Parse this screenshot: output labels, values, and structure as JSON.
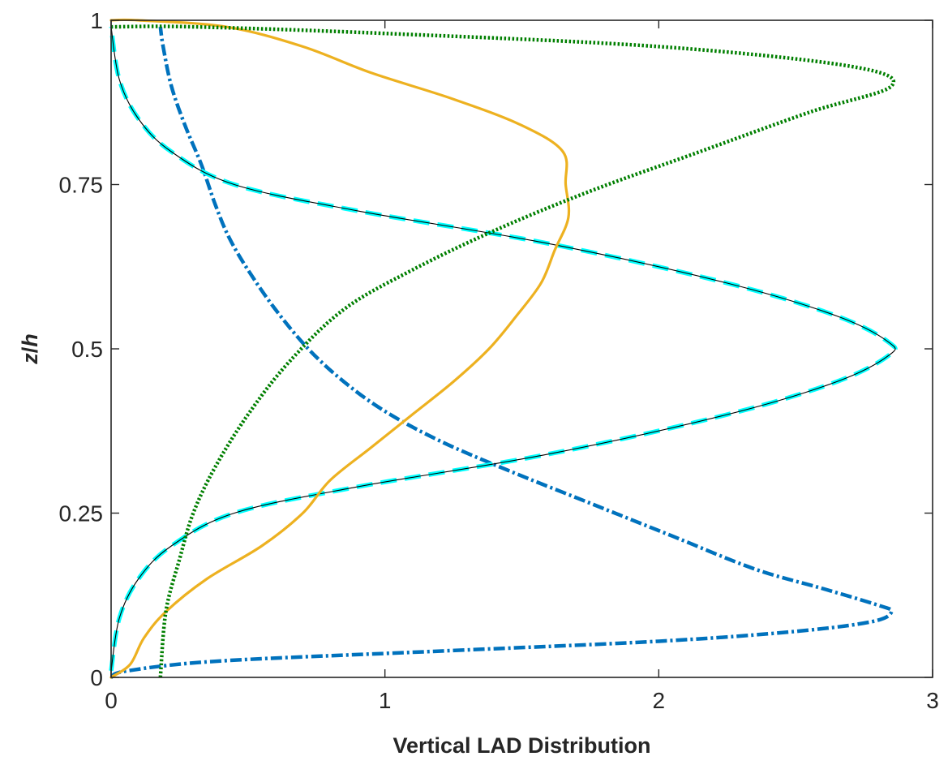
{
  "chart_data": {
    "type": "line",
    "title": "",
    "xlabel": "Vertical LAD Distribution",
    "ylabel": "z/h",
    "xlim": [
      0,
      3
    ],
    "ylim": [
      0,
      1
    ],
    "xticks": [
      "0",
      "1",
      "2",
      "3"
    ],
    "yticks": [
      "0",
      "0.25",
      "0.5",
      "0.75",
      "1"
    ],
    "grid": false,
    "series": [
      {
        "style": "dash-dot",
        "color": "#0072BD",
        "points": [
          [
            0.0,
            0.0
          ],
          [
            0.06,
            0.01
          ],
          [
            0.4,
            0.025
          ],
          [
            1.2,
            0.04
          ],
          [
            2.0,
            0.055
          ],
          [
            2.5,
            0.07
          ],
          [
            2.78,
            0.085
          ],
          [
            2.85,
            0.1
          ],
          [
            2.8,
            0.11
          ],
          [
            2.6,
            0.135
          ],
          [
            2.35,
            0.165
          ],
          [
            2.05,
            0.215
          ],
          [
            1.75,
            0.265
          ],
          [
            1.45,
            0.315
          ],
          [
            1.2,
            0.36
          ],
          [
            1.0,
            0.405
          ],
          [
            0.85,
            0.45
          ],
          [
            0.72,
            0.5
          ],
          [
            0.6,
            0.56
          ],
          [
            0.5,
            0.62
          ],
          [
            0.43,
            0.67
          ],
          [
            0.38,
            0.72
          ],
          [
            0.33,
            0.78
          ],
          [
            0.27,
            0.84
          ],
          [
            0.22,
            0.9
          ],
          [
            0.19,
            0.96
          ],
          [
            0.18,
            0.99
          ]
        ]
      },
      {
        "style": "dashed",
        "color": "#00FFFF",
        "points": [
          [
            0.0,
            0.01
          ],
          [
            0.03,
            0.09
          ],
          [
            0.1,
            0.15
          ],
          [
            0.22,
            0.2
          ],
          [
            0.45,
            0.25
          ],
          [
            0.9,
            0.29
          ],
          [
            1.6,
            0.34
          ],
          [
            2.25,
            0.4
          ],
          [
            2.65,
            0.45
          ],
          [
            2.84,
            0.49
          ],
          [
            2.84,
            0.51
          ],
          [
            2.65,
            0.55
          ],
          [
            2.25,
            0.6
          ],
          [
            1.6,
            0.66
          ],
          [
            0.9,
            0.71
          ],
          [
            0.45,
            0.75
          ],
          [
            0.22,
            0.8
          ],
          [
            0.1,
            0.85
          ],
          [
            0.03,
            0.91
          ],
          [
            0.0,
            0.99
          ]
        ]
      },
      {
        "style": "thin-solid",
        "color": "#000000",
        "points": [
          [
            0.0,
            0.01
          ],
          [
            0.03,
            0.09
          ],
          [
            0.1,
            0.15
          ],
          [
            0.22,
            0.2
          ],
          [
            0.45,
            0.25
          ],
          [
            0.9,
            0.29
          ],
          [
            1.6,
            0.34
          ],
          [
            2.25,
            0.4
          ],
          [
            2.65,
            0.45
          ],
          [
            2.84,
            0.49
          ],
          [
            2.84,
            0.51
          ],
          [
            2.65,
            0.55
          ],
          [
            2.25,
            0.6
          ],
          [
            1.6,
            0.66
          ],
          [
            0.9,
            0.71
          ],
          [
            0.45,
            0.75
          ],
          [
            0.22,
            0.8
          ],
          [
            0.1,
            0.85
          ],
          [
            0.03,
            0.91
          ],
          [
            0.0,
            0.99
          ]
        ]
      },
      {
        "style": "solid",
        "color": "#EDB120",
        "points": [
          [
            0.0,
            0.0
          ],
          [
            0.07,
            0.02
          ],
          [
            0.12,
            0.06
          ],
          [
            0.2,
            0.1
          ],
          [
            0.35,
            0.15
          ],
          [
            0.55,
            0.2
          ],
          [
            0.7,
            0.25
          ],
          [
            0.8,
            0.3
          ],
          [
            0.95,
            0.35
          ],
          [
            1.1,
            0.4
          ],
          [
            1.25,
            0.45
          ],
          [
            1.38,
            0.5
          ],
          [
            1.48,
            0.55
          ],
          [
            1.57,
            0.6
          ],
          [
            1.62,
            0.65
          ],
          [
            1.67,
            0.7
          ],
          [
            1.66,
            0.75
          ],
          [
            1.65,
            0.8
          ],
          [
            1.5,
            0.84
          ],
          [
            1.25,
            0.88
          ],
          [
            0.95,
            0.92
          ],
          [
            0.7,
            0.96
          ],
          [
            0.42,
            0.99
          ],
          [
            0.1,
            1.0
          ],
          [
            0.0,
            1.0
          ]
        ]
      },
      {
        "style": "dotted",
        "color": "#007F00",
        "points": [
          [
            0.18,
            0.0
          ],
          [
            0.2,
            0.1
          ],
          [
            0.25,
            0.18
          ],
          [
            0.3,
            0.25
          ],
          [
            0.38,
            0.32
          ],
          [
            0.5,
            0.4
          ],
          [
            0.65,
            0.48
          ],
          [
            0.85,
            0.56
          ],
          [
            1.1,
            0.62
          ],
          [
            1.4,
            0.68
          ],
          [
            1.75,
            0.74
          ],
          [
            2.15,
            0.8
          ],
          [
            2.55,
            0.86
          ],
          [
            2.85,
            0.9
          ],
          [
            2.7,
            0.93
          ],
          [
            2.0,
            0.96
          ],
          [
            1.0,
            0.98
          ],
          [
            0.3,
            0.99
          ],
          [
            0.0,
            0.99
          ]
        ]
      }
    ]
  }
}
